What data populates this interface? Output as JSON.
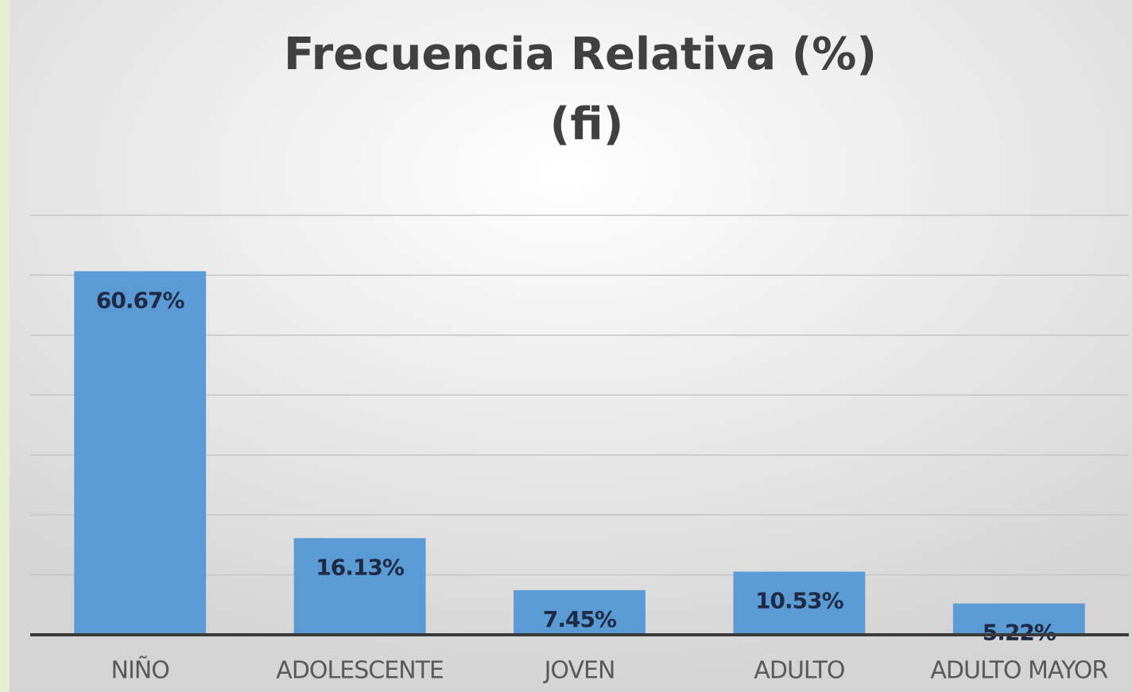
{
  "chart_data": {
    "type": "bar",
    "title": "Frecuencia Relativa (%)",
    "subtitle": "(fi)",
    "categories": [
      "NIÑO",
      "ADOLESCENTE",
      "JOVEN",
      "ADULTO",
      "ADULTO MAYOR"
    ],
    "values": [
      60.67,
      16.13,
      7.45,
      10.53,
      5.22
    ],
    "value_labels": [
      "60.67%",
      "16.13%",
      "7.45%",
      "10.53%",
      "5.22%"
    ],
    "color": "#5b9bd5",
    "ylim": [
      0,
      70
    ],
    "yticks": [
      0,
      10,
      20,
      30,
      40,
      50,
      60,
      70
    ],
    "grid": true
  }
}
